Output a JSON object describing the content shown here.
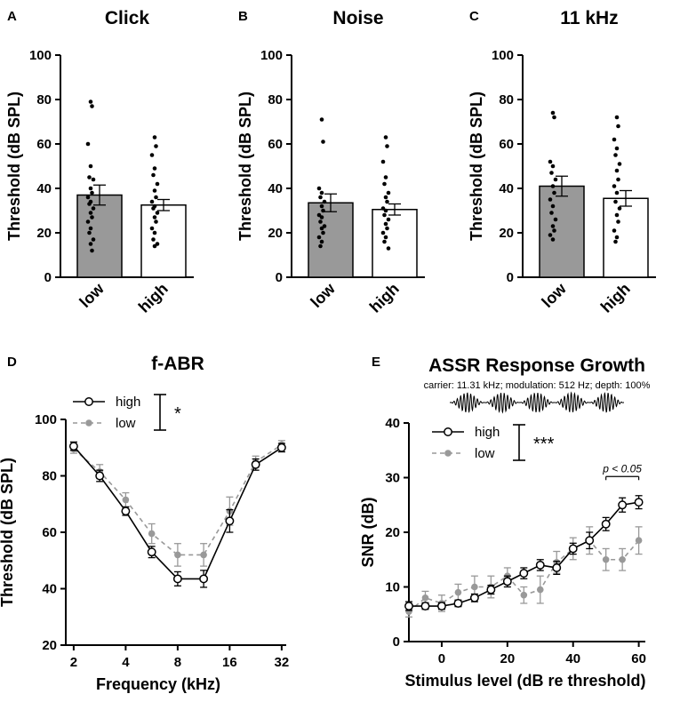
{
  "chart_data": [
    {
      "panel": "A",
      "type": "bar",
      "title": "Click",
      "ylabel": "Threshold (dB SPL)",
      "ylim": [
        0,
        100
      ],
      "yticks": [
        0,
        20,
        40,
        60,
        80,
        100
      ],
      "categories": [
        "low",
        "high"
      ],
      "values": [
        37,
        32.5
      ],
      "errors": [
        4.5,
        2.5
      ],
      "colors": [
        "#999999",
        "#ffffff"
      ],
      "points": [
        [
          79,
          77,
          60,
          50,
          45,
          44,
          40,
          38,
          36,
          34,
          33,
          31,
          29,
          27,
          25,
          22,
          20,
          17,
          15,
          12
        ],
        [
          63,
          59,
          55,
          49,
          46,
          42,
          39,
          36,
          34,
          32,
          31,
          29,
          27,
          25,
          22,
          20,
          17,
          15,
          14
        ]
      ]
    },
    {
      "panel": "B",
      "type": "bar",
      "title": "Noise",
      "ylabel": "Threshold (dB SPL)",
      "ylim": [
        0,
        100
      ],
      "yticks": [
        0,
        20,
        40,
        60,
        80,
        100
      ],
      "categories": [
        "low",
        "high"
      ],
      "values": [
        33.5,
        30.5
      ],
      "errors": [
        4,
        2.5
      ],
      "colors": [
        "#999999",
        "#ffffff"
      ],
      "points": [
        [
          71,
          61,
          40,
          38,
          36,
          34,
          32,
          30,
          28,
          27,
          25,
          23,
          22,
          20,
          18,
          16,
          14
        ],
        [
          63,
          59,
          52,
          45,
          42,
          38,
          36,
          34,
          31,
          30,
          28,
          26,
          24,
          22,
          20,
          18,
          16,
          13
        ]
      ]
    },
    {
      "panel": "C",
      "type": "bar",
      "title": "11 kHz",
      "ylabel": "Threshold (dB SPL)",
      "ylim": [
        0,
        100
      ],
      "yticks": [
        0,
        20,
        40,
        60,
        80,
        100
      ],
      "categories": [
        "low",
        "high"
      ],
      "values": [
        41,
        35.5
      ],
      "errors": [
        4.5,
        3.5
      ],
      "colors": [
        "#999999",
        "#ffffff"
      ],
      "points": [
        [
          74,
          72,
          52,
          50,
          47,
          44,
          41,
          38,
          35,
          32,
          29,
          26,
          23,
          21,
          19,
          17
        ],
        [
          72,
          68,
          62,
          58,
          55,
          51,
          48,
          44,
          41,
          38,
          34,
          31,
          28,
          25,
          21,
          18,
          16
        ]
      ]
    },
    {
      "panel": "D",
      "type": "line",
      "title": "f-ABR",
      "xlabel": "Frequency (kHz)",
      "ylabel": "Threshold (dB SPL)",
      "xscale": "log2",
      "xlim": [
        1.8,
        34
      ],
      "ylim": [
        20,
        100
      ],
      "xticks": [
        2,
        4,
        8,
        16,
        32
      ],
      "yticks": [
        20,
        40,
        60,
        80,
        100
      ],
      "legend": {
        "position": "top-left",
        "significance": "*"
      },
      "series": [
        {
          "name": "high",
          "color": "#000000",
          "dashed": false,
          "marker": "open-circle",
          "x": [
            2,
            2.83,
            4,
            5.66,
            8,
            11.31,
            16,
            22.63,
            32
          ],
          "y": [
            90.5,
            80,
            67.5,
            53,
            43.5,
            43.5,
            64,
            84,
            90
          ],
          "err": [
            1.5,
            2,
            1.5,
            2,
            2.5,
            3,
            4,
            2,
            1.5
          ]
        },
        {
          "name": "low",
          "color": "#999999",
          "dashed": true,
          "marker": "filled-circle",
          "x": [
            2,
            2.83,
            4,
            5.66,
            8,
            11.31,
            16,
            22.63,
            32
          ],
          "y": [
            89.5,
            81.5,
            71.5,
            59.5,
            52,
            52,
            67.5,
            85,
            91
          ],
          "err": [
            1.5,
            2.5,
            2.5,
            3.5,
            4,
            4,
            5,
            2,
            1.5
          ]
        }
      ]
    },
    {
      "panel": "E",
      "type": "line",
      "title": "ASSR Response Growth",
      "subtitle": "carrier: 11.31 kHz; modulation: 512 Hz; depth: 100%",
      "xlabel": "Stimulus level (dB re threshold)",
      "ylabel": "SNR (dB)",
      "xlim": [
        -10,
        62
      ],
      "ylim": [
        0,
        40
      ],
      "xticks": [
        0,
        20,
        40,
        60
      ],
      "yticks": [
        0,
        10,
        20,
        30,
        40
      ],
      "legend": {
        "position": "top-left",
        "significance": "***"
      },
      "annotation": "p < 0.05",
      "series": [
        {
          "name": "high",
          "color": "#000000",
          "dashed": false,
          "marker": "open-circle",
          "x": [
            -10,
            -5,
            0,
            5,
            10,
            15,
            20,
            25,
            30,
            35,
            40,
            45,
            50,
            55,
            60
          ],
          "y": [
            6.5,
            6.5,
            6.5,
            7,
            8,
            9.5,
            11,
            12.5,
            14,
            13.5,
            17,
            18.5,
            21.5,
            25,
            25.5
          ],
          "err": [
            0.8,
            0.6,
            0.6,
            0.6,
            0.7,
            0.8,
            1,
            1,
            1,
            1.2,
            1,
            1.5,
            1.2,
            1.3,
            1.2
          ]
        },
        {
          "name": "low",
          "color": "#999999",
          "dashed": true,
          "marker": "filled-circle",
          "x": [
            -10,
            -5,
            0,
            5,
            10,
            15,
            20,
            25,
            30,
            35,
            40,
            45,
            50,
            55,
            60
          ],
          "y": [
            5.5,
            8,
            7,
            9,
            10,
            10,
            12,
            8.5,
            9.5,
            14.5,
            17,
            18.5,
            15,
            15,
            18.5
          ],
          "err": [
            1,
            1.2,
            1.5,
            1.5,
            2,
            2,
            1.5,
            1.5,
            2.5,
            2,
            2,
            2.5,
            2,
            2,
            2.5
          ]
        }
      ]
    }
  ]
}
